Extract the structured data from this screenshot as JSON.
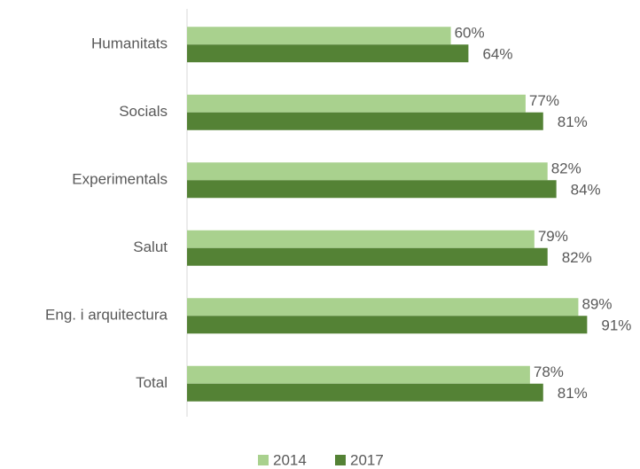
{
  "chart_data": {
    "type": "hbar",
    "categories": [
      "Humanitats",
      "Socials",
      "Experimentals",
      "Salut",
      "Eng. i arquitectura",
      "Total"
    ],
    "series": [
      {
        "name": "2014",
        "color": "#a9d18e",
        "values": [
          60,
          77,
          82,
          79,
          89,
          78
        ],
        "value_labels": [
          "60%",
          "77%",
          "82%",
          "79%",
          "89%",
          "78%"
        ]
      },
      {
        "name": "2017",
        "color": "#548235",
        "values": [
          64,
          81,
          84,
          82,
          91,
          81
        ],
        "value_labels": [
          "64%",
          "81%",
          "84%",
          "82%",
          "91%",
          "81%"
        ]
      }
    ],
    "xlim": [
      0,
      100
    ],
    "legend": "bottom"
  }
}
